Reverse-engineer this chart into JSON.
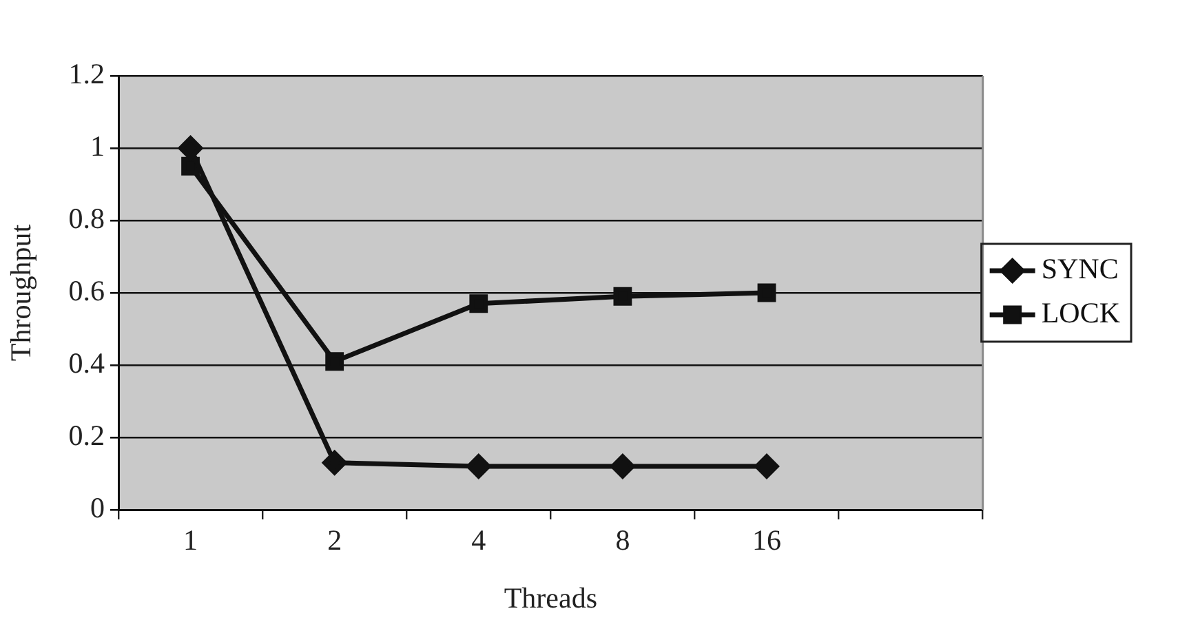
{
  "chart_data": {
    "type": "line",
    "xlabel": "Threads",
    "ylabel": "Throughput",
    "categories": [
      "1",
      "2",
      "4",
      "8",
      "16",
      null
    ],
    "series": [
      {
        "name": "SYNC",
        "color": "#111111",
        "marker": "diamond",
        "values": [
          1.0,
          0.13,
          0.12,
          0.12,
          0.12,
          null
        ]
      },
      {
        "name": "LOCK",
        "color": "#111111",
        "marker": "square",
        "values": [
          0.95,
          0.41,
          0.57,
          0.59,
          0.6,
          null
        ]
      }
    ],
    "ylim": [
      0,
      1.2
    ],
    "yticks": [
      0,
      0.2,
      0.4,
      0.6,
      0.8,
      1,
      1.2
    ],
    "grid": "y",
    "legend": "right"
  }
}
